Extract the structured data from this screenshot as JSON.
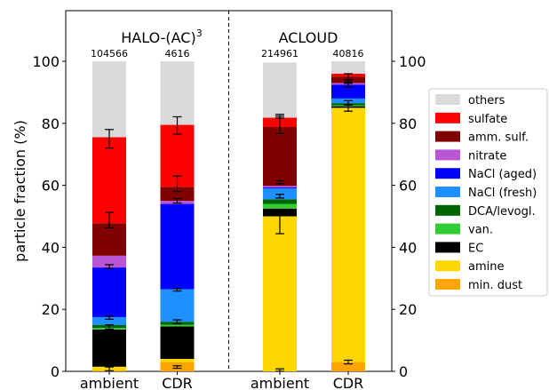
{
  "chart_data": {
    "type": "bar",
    "stacked": true,
    "ylabel": "particle fraction (%)",
    "ylim": [
      0,
      115
    ],
    "yticks": [
      0,
      20,
      40,
      60,
      80,
      100
    ],
    "right_axis_ticks": true,
    "grid": false,
    "legend_position": "right",
    "panels": [
      {
        "label": "HALO-(AC)",
        "label_sup": "3",
        "categories": [
          "ambient",
          "CDR"
        ],
        "counts": [
          "104566",
          "4616"
        ]
      },
      {
        "label": "ACLOUD",
        "categories": [
          "ambient",
          "CDR"
        ],
        "counts": [
          "214961",
          "40816"
        ]
      }
    ],
    "categories": [
      "ambient",
      "CDR",
      "ambient",
      "CDR"
    ],
    "series": [
      {
        "name": "min. dust",
        "color": "#ffa500",
        "values": [
          0.3,
          3.0,
          0.0,
          3.0
        ]
      },
      {
        "name": "amine",
        "color": "#ffd700",
        "values": [
          1.2,
          1.0,
          50.0,
          82.0
        ]
      },
      {
        "name": "EC",
        "color": "#000000",
        "values": [
          12.0,
          10.5,
          2.5,
          0.5
        ]
      },
      {
        "name": "van.",
        "color": "#32cd32",
        "values": [
          0.5,
          0.5,
          1.5,
          0.3
        ]
      },
      {
        "name": "DCA/levogl.",
        "color": "#006400",
        "values": [
          1.0,
          1.0,
          1.5,
          0.7
        ]
      },
      {
        "name": "NaCl (fresh)",
        "color": "#1e90ff",
        "values": [
          2.5,
          10.5,
          3.5,
          1.5
        ]
      },
      {
        "name": "NaCl (aged)",
        "color": "#0000ff",
        "values": [
          16.0,
          27.5,
          0.3,
          4.5
        ]
      },
      {
        "name": "nitrate",
        "color": "#ba55d3",
        "values": [
          3.8,
          1.0,
          0.5,
          0.5
        ]
      },
      {
        "name": "amm. sulf.",
        "color": "#800000",
        "values": [
          10.5,
          4.5,
          19.0,
          2.0
        ]
      },
      {
        "name": "sulfate",
        "color": "#ff0000",
        "values": [
          27.7,
          20.0,
          3.0,
          1.0
        ]
      },
      {
        "name": "others",
        "color": "#d9d9d9",
        "values": [
          24.5,
          20.5,
          17.8,
          4.0
        ]
      }
    ],
    "error_bars": [
      {
        "bar": 0,
        "y": 0.8,
        "err": 0.6
      },
      {
        "bar": 0,
        "y": 14.3,
        "err": 0.7
      },
      {
        "bar": 0,
        "y": 17.3,
        "err": 0.5
      },
      {
        "bar": 0,
        "y": 33.8,
        "err": 0.6
      },
      {
        "bar": 0,
        "y": 48.8,
        "err": 2.5
      },
      {
        "bar": 0,
        "y": 75.0,
        "err": 3.0
      },
      {
        "bar": 1,
        "y": 1.4,
        "err": 0.4
      },
      {
        "bar": 1,
        "y": 16.0,
        "err": 0.6
      },
      {
        "bar": 1,
        "y": 26.3,
        "err": 0.4
      },
      {
        "bar": 1,
        "y": 55.0,
        "err": 0.7
      },
      {
        "bar": 1,
        "y": 60.5,
        "err": 2.5
      },
      {
        "bar": 1,
        "y": 79.3,
        "err": 2.8
      },
      {
        "bar": 2,
        "y": 0.4,
        "err": 0.4
      },
      {
        "bar": 2,
        "y": 48.2,
        "err": 3.8
      },
      {
        "bar": 2,
        "y": 56.5,
        "err": 0.6
      },
      {
        "bar": 2,
        "y": 61.0,
        "err": 0.5
      },
      {
        "bar": 2,
        "y": 79.5,
        "err": 2.8
      },
      {
        "bar": 2,
        "y": 82.3,
        "err": 0.6
      },
      {
        "bar": 3,
        "y": 3.0,
        "err": 0.6
      },
      {
        "bar": 3,
        "y": 84.9,
        "err": 1.0
      },
      {
        "bar": 3,
        "y": 86.7,
        "err": 0.6
      },
      {
        "bar": 3,
        "y": 92.5,
        "err": 0.8
      },
      {
        "bar": 3,
        "y": 93.5,
        "err": 0.6
      },
      {
        "bar": 3,
        "y": 95.0,
        "err": 1.0
      }
    ]
  }
}
